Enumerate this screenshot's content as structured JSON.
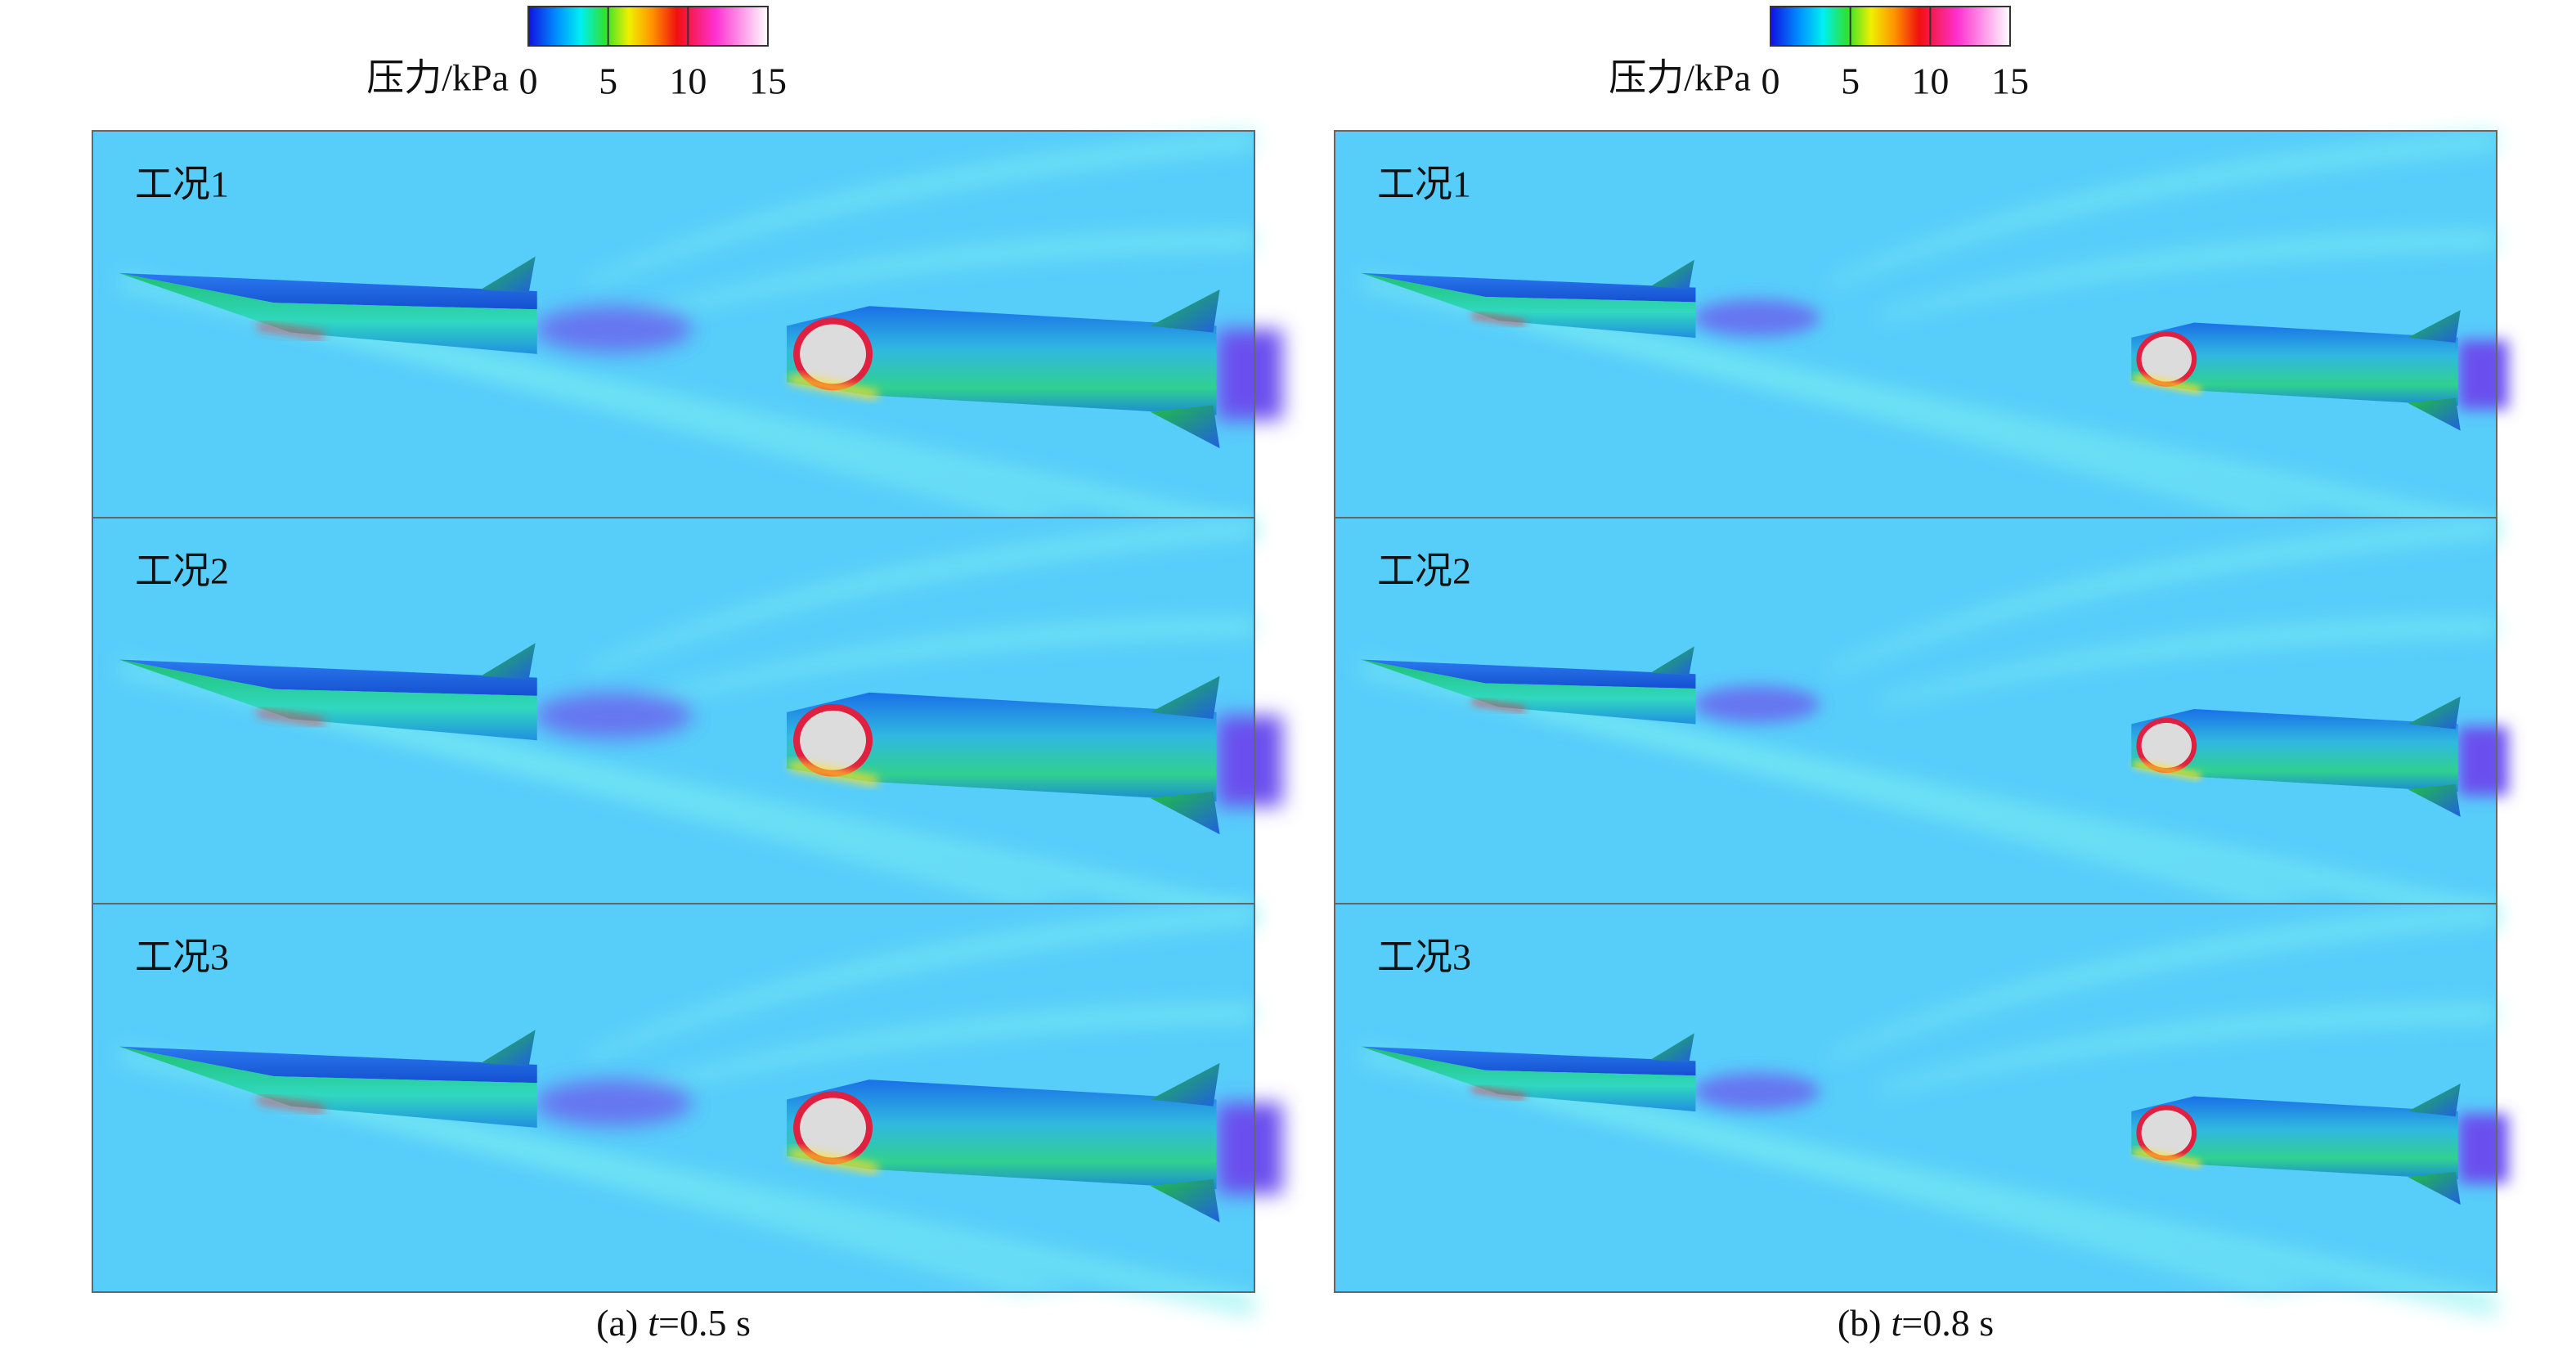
{
  "panels": [
    {
      "colorbar": {
        "label": "压力/kPa",
        "lim": [
          0,
          15
        ],
        "ticks": [
          0,
          5,
          10,
          15
        ]
      },
      "cases": [
        "工况1",
        "工况2",
        "工况3"
      ],
      "caption": {
        "label": "(a)",
        "variable": "t",
        "value": "=0.5 s"
      }
    },
    {
      "colorbar": {
        "label": "压力/kPa",
        "lim": [
          0,
          15
        ],
        "ticks": [
          0,
          5,
          10,
          15
        ]
      },
      "cases": [
        "工况1",
        "工况2",
        "工况3"
      ],
      "caption": {
        "label": "(b)",
        "variable": "t",
        "value": "=0.8 s"
      }
    }
  ]
}
